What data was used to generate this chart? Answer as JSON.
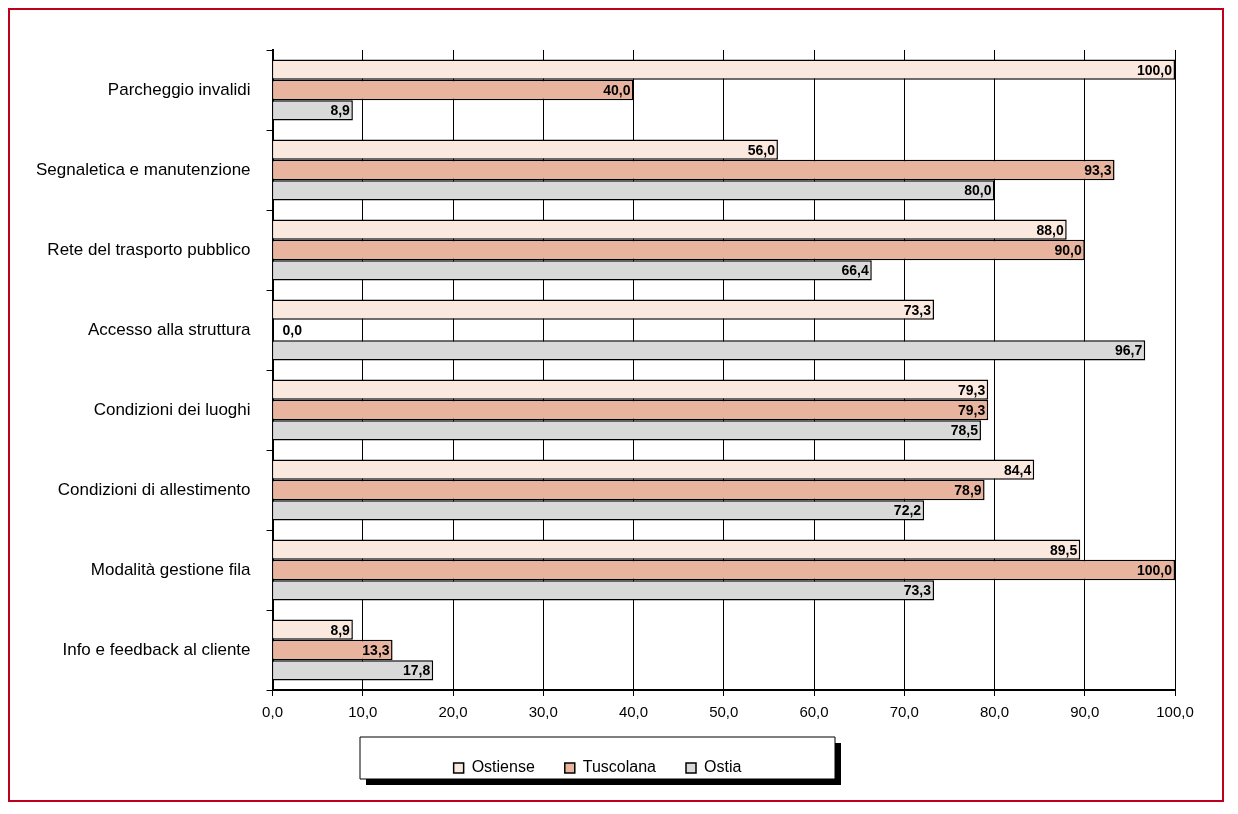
{
  "chart_data": {
    "type": "bar",
    "orientation": "horizontal",
    "categories": [
      "Parcheggio invalidi",
      "Segnaletica e manutenzione",
      "Rete del trasporto pubblico",
      "Accesso alla struttura",
      "Condizioni dei luoghi",
      "Condizioni di allestimento",
      "Modalità gestione fila",
      "Info e feedback al cliente"
    ],
    "series": [
      {
        "name": "Ostiense",
        "color": "#fbe8df",
        "values": [
          100.0,
          56.0,
          88.0,
          73.3,
          79.3,
          84.4,
          89.5,
          8.9
        ],
        "value_labels": [
          "100,0",
          "56,0",
          "88,0",
          "73,3",
          "79,3",
          "84,4",
          "89,5",
          "8,9"
        ]
      },
      {
        "name": "Tuscolana",
        "color": "#e8b49e",
        "values": [
          40.0,
          93.3,
          90.0,
          0.0,
          79.3,
          78.9,
          100.0,
          13.3
        ],
        "value_labels": [
          "40,0",
          "93,3",
          "90,0",
          "0,0",
          "79,3",
          "78,9",
          "100,0",
          "13,3"
        ]
      },
      {
        "name": "Ostia",
        "color": "#d9d9d9",
        "values": [
          8.9,
          80.0,
          66.4,
          96.7,
          78.5,
          72.2,
          73.3,
          17.8
        ],
        "value_labels": [
          "8,9",
          "80,0",
          "66,4",
          "96,7",
          "78,5",
          "72,2",
          "73,3",
          "17,8"
        ]
      }
    ],
    "xlim": [
      0,
      100
    ],
    "xticks": [
      {
        "value": 0,
        "label": "0,0"
      },
      {
        "value": 10,
        "label": "10,0"
      },
      {
        "value": 20,
        "label": "20,0"
      },
      {
        "value": 30,
        "label": "30,0"
      },
      {
        "value": 40,
        "label": "40,0"
      },
      {
        "value": 50,
        "label": "50,0"
      },
      {
        "value": 60,
        "label": "60,0"
      },
      {
        "value": 70,
        "label": "70,0"
      },
      {
        "value": 80,
        "label": "80,0"
      },
      {
        "value": 90,
        "label": "90,0"
      },
      {
        "value": 100,
        "label": "100,0"
      }
    ],
    "grid": "x",
    "legend": "bottom"
  }
}
